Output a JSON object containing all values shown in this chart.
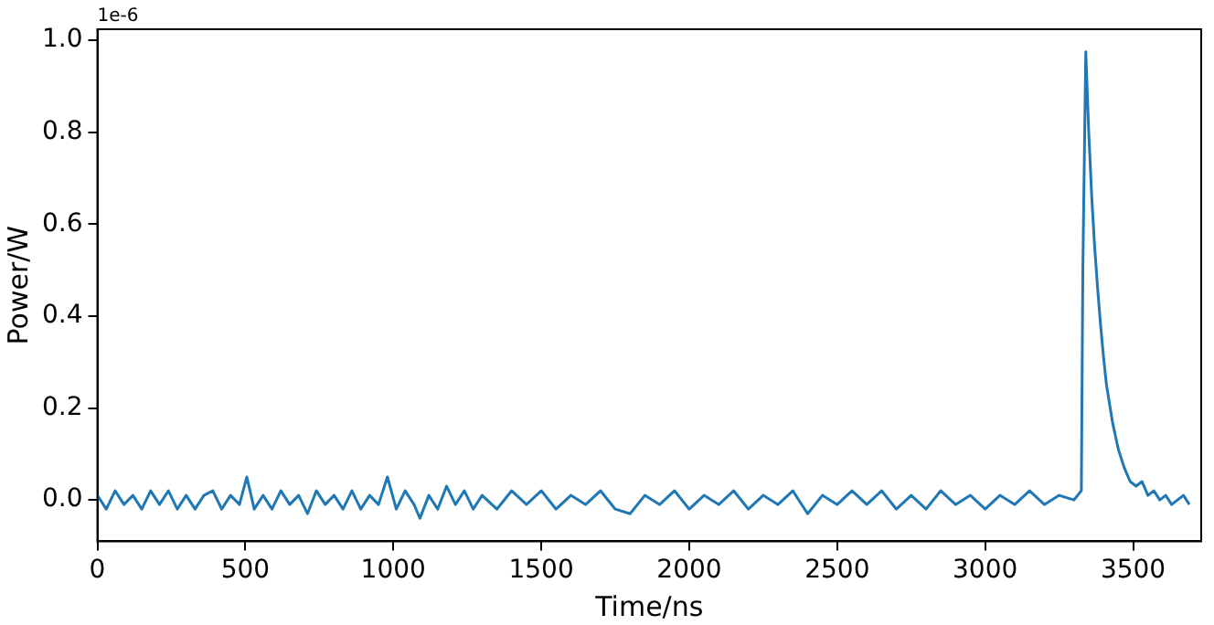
{
  "chart_data": {
    "type": "line",
    "xlabel": "Time/ns",
    "ylabel": "Power/W",
    "annotations": [
      "1e-6"
    ],
    "x": [
      0,
      30,
      60,
      90,
      120,
      150,
      180,
      210,
      240,
      270,
      300,
      330,
      360,
      390,
      420,
      450,
      480,
      505,
      530,
      560,
      590,
      620,
      650,
      680,
      710,
      740,
      770,
      800,
      830,
      860,
      890,
      920,
      950,
      980,
      1010,
      1040,
      1070,
      1090,
      1120,
      1150,
      1180,
      1210,
      1240,
      1270,
      1300,
      1350,
      1400,
      1450,
      1500,
      1550,
      1600,
      1650,
      1700,
      1750,
      1800,
      1850,
      1900,
      1950,
      2000,
      2050,
      2100,
      2150,
      2200,
      2250,
      2300,
      2350,
      2400,
      2450,
      2500,
      2550,
      2600,
      2650,
      2700,
      2750,
      2800,
      2850,
      2900,
      2950,
      3000,
      3050,
      3100,
      3150,
      3200,
      3250,
      3300,
      3325,
      3330,
      3340,
      3350,
      3360,
      3370,
      3380,
      3390,
      3400,
      3410,
      3420,
      3430,
      3440,
      3450,
      3470,
      3490,
      3510,
      3530,
      3550,
      3570,
      3590,
      3610,
      3630,
      3650,
      3670,
      3690
    ],
    "series": [
      {
        "color": "#1f77b4",
        "values": [
          0.01,
          -0.02,
          0.02,
          -0.01,
          0.01,
          -0.02,
          0.02,
          -0.01,
          0.02,
          -0.02,
          0.01,
          -0.02,
          0.01,
          0.02,
          -0.02,
          0.01,
          -0.01,
          0.05,
          -0.02,
          0.01,
          -0.02,
          0.02,
          -0.01,
          0.01,
          -0.03,
          0.02,
          -0.01,
          0.01,
          -0.02,
          0.02,
          -0.02,
          0.01,
          -0.01,
          0.05,
          -0.02,
          0.02,
          -0.01,
          -0.04,
          0.01,
          -0.02,
          0.03,
          -0.01,
          0.02,
          -0.02,
          0.01,
          -0.02,
          0.02,
          -0.01,
          0.02,
          -0.02,
          0.01,
          -0.01,
          0.02,
          -0.02,
          -0.03,
          0.01,
          -0.01,
          0.02,
          -0.02,
          0.01,
          -0.01,
          0.02,
          -0.02,
          0.01,
          -0.01,
          0.02,
          -0.03,
          0.01,
          -0.01,
          0.02,
          -0.01,
          0.02,
          -0.02,
          0.01,
          -0.02,
          0.02,
          -0.01,
          0.01,
          -0.02,
          0.01,
          -0.01,
          0.02,
          -0.01,
          0.01,
          0.0,
          0.02,
          0.5,
          0.975,
          0.8,
          0.66,
          0.55,
          0.46,
          0.38,
          0.31,
          0.25,
          0.21,
          0.17,
          0.14,
          0.11,
          0.07,
          0.04,
          0.03,
          0.04,
          0.01,
          0.02,
          0.0,
          0.01,
          -0.01,
          0.0,
          0.01,
          -0.01
        ]
      }
    ],
    "xlim": [
      0,
      3730
    ],
    "xticks": [
      0,
      500,
      1000,
      1500,
      2000,
      2500,
      3000,
      3500
    ],
    "ylim": [
      -0.09,
      1.024
    ],
    "yticks": [
      {
        "value": 0,
        "label": "0.0"
      },
      {
        "value": 0.2,
        "label": "0.2"
      },
      {
        "value": 0.4,
        "label": "0.4"
      },
      {
        "value": 0.6,
        "label": "0.6"
      },
      {
        "value": 0.8,
        "label": "0.8"
      },
      {
        "value": 1,
        "label": "1.0"
      }
    ],
    "grid": false,
    "legend": false,
    "marker": "none",
    "line_style": "solid"
  }
}
